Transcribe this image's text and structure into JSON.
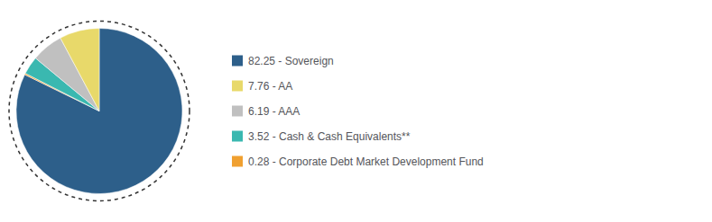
{
  "chart_data": {
    "type": "pie",
    "categories": [
      "82.25 - Sovereign",
      "0.28 - Corporate Debt Market Development Fund",
      "3.52 - Cash & Cash Equivalents**",
      "6.19 - AAA",
      "7.76 - AA"
    ],
    "values": [
      82.25,
      0.28,
      3.52,
      6.19,
      7.76
    ],
    "colors": [
      "#2d5f8a",
      "#f0a030",
      "#3ab8b0",
      "#c0c0c0",
      "#e8d96a"
    ],
    "legend": "right"
  }
}
